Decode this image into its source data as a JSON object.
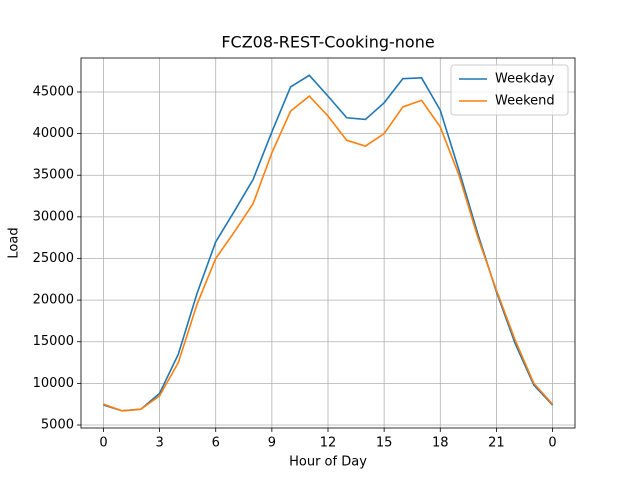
{
  "chart_data": {
    "type": "line",
    "title": "FCZ08-REST-Cooking-none",
    "x_label": "Hour of Day",
    "y_label": "Load",
    "x": [
      0,
      1,
      2,
      3,
      4,
      5,
      6,
      7,
      8,
      9,
      10,
      11,
      12,
      13,
      14,
      15,
      16,
      17,
      18,
      19,
      20,
      21,
      22,
      23,
      24
    ],
    "series": [
      {
        "name": "Weekday",
        "color": "#1f77b4",
        "values": [
          7400,
          6700,
          6900,
          8800,
          13500,
          20800,
          27000,
          30700,
          34500,
          40200,
          45600,
          47000,
          44500,
          41900,
          41700,
          43700,
          46600,
          46700,
          42800,
          35600,
          28000,
          21000,
          14800,
          9800,
          7400
        ]
      },
      {
        "name": "Weekend",
        "color": "#ff7f0e",
        "values": [
          7500,
          6700,
          6900,
          8500,
          12500,
          19500,
          25000,
          28200,
          31600,
          37700,
          42700,
          44500,
          42100,
          39200,
          38500,
          40000,
          43200,
          44000,
          40800,
          35000,
          27600,
          21200,
          15200,
          10000,
          7500
        ]
      }
    ],
    "xlim": [
      -1.2,
      25.2
    ],
    "xticks": [
      0,
      3,
      6,
      9,
      12,
      15,
      18,
      21,
      {
        "value": 24,
        "label": "0"
      }
    ],
    "ylim": [
      4640,
      49080
    ],
    "yticks": [
      5000,
      10000,
      15000,
      20000,
      25000,
      30000,
      35000,
      40000,
      45000
    ],
    "grid": true,
    "legend": "upper right"
  }
}
